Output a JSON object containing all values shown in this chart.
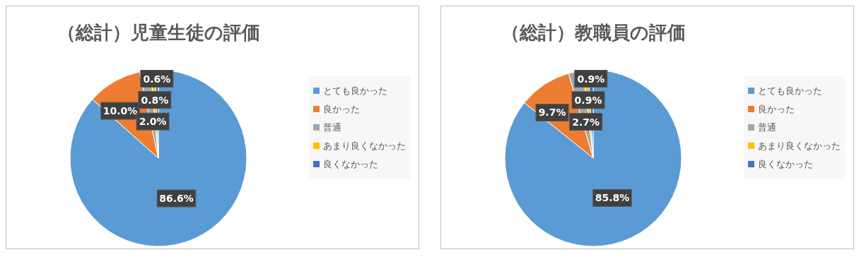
{
  "chart_data": [
    {
      "type": "pie",
      "title": "（総計）児童生徒の評価",
      "categories": [
        "とても良かった",
        "良かった",
        "普通",
        "あまり良くなかった",
        "良くなかった"
      ],
      "values": [
        86.6,
        10.0,
        2.0,
        0.8,
        0.6
      ],
      "value_labels": [
        "86.6%",
        "10.0%",
        "2.0%",
        "0.8%",
        "0.6%"
      ],
      "colors": [
        "#5b9bd5",
        "#ed7d31",
        "#a5a5a5",
        "#ffc000",
        "#4472c4"
      ],
      "legend": "right"
    },
    {
      "type": "pie",
      "title": "（総計）教職員の評価",
      "categories": [
        "とても良かった",
        "良かった",
        "普通",
        "あまり良くなかった",
        "良くなかった"
      ],
      "values": [
        85.8,
        9.7,
        2.7,
        0.9,
        0.9
      ],
      "value_labels": [
        "85.8%",
        "9.7%",
        "2.7%",
        "0.9%",
        "0.9%"
      ],
      "colors": [
        "#5b9bd5",
        "#ed7d31",
        "#a5a5a5",
        "#ffc000",
        "#4472c4"
      ],
      "legend": "right"
    }
  ]
}
